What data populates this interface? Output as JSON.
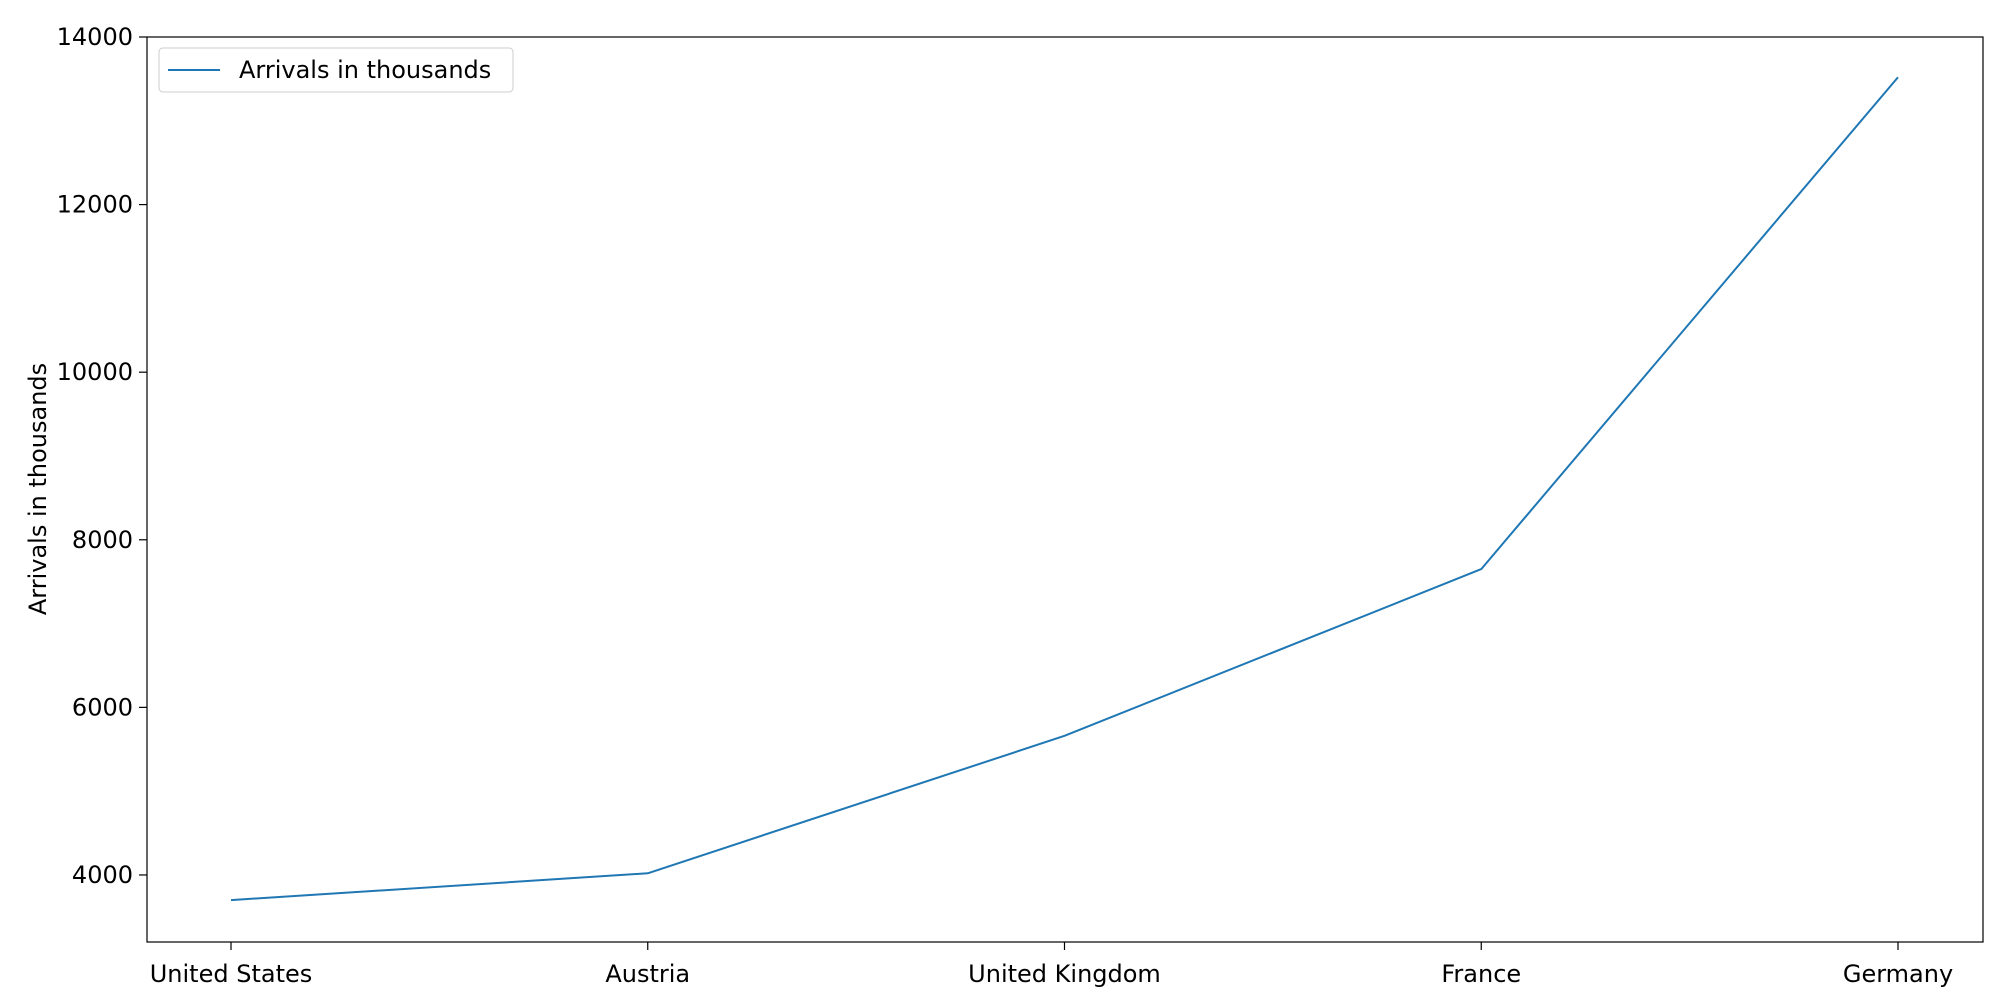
{
  "chart_data": {
    "type": "line",
    "categories": [
      "United States",
      "Austria",
      "United Kingdom",
      "France",
      "Germany"
    ],
    "series": [
      {
        "name": "Arrivals in thousands",
        "values": [
          3700,
          4020,
          5660,
          7650,
          13520
        ],
        "color": "#1f77b4"
      }
    ],
    "xlabel": "",
    "ylabel": "Arrivals in thousands",
    "ylim": [
      3200,
      14000
    ],
    "yticks": [
      4000,
      6000,
      8000,
      10000,
      12000,
      14000
    ],
    "grid": false,
    "legend_position": "top-left"
  }
}
